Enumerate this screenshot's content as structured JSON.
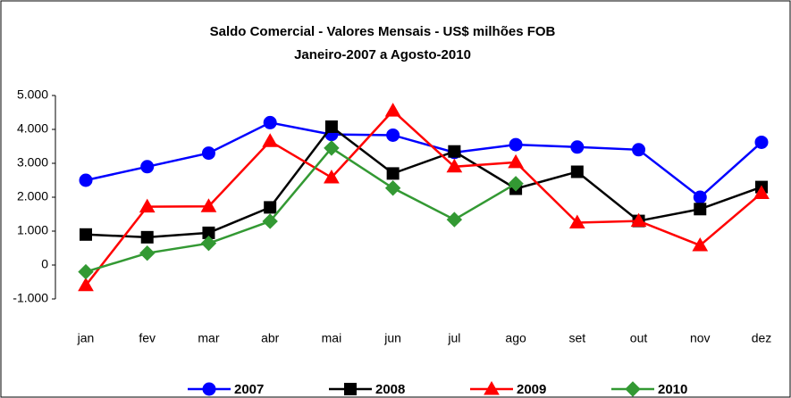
{
  "chart_data": {
    "type": "line",
    "title": "Saldo Comercial - Valores Mensais - US$ milhões FOB",
    "subtitle": "Janeiro-2007 a Agosto-2010",
    "categories": [
      "jan",
      "fev",
      "mar",
      "abr",
      "mai",
      "jun",
      "jul",
      "ago",
      "set",
      "out",
      "nov",
      "dez"
    ],
    "series": [
      {
        "name": "2007",
        "color": "#0000ff",
        "marker": "circle",
        "values": [
          2500,
          2900,
          3300,
          4200,
          3850,
          3830,
          3320,
          3550,
          3480,
          3400,
          2000,
          3620
        ]
      },
      {
        "name": "2008",
        "color": "#000000",
        "marker": "square",
        "values": [
          900,
          820,
          950,
          1700,
          4080,
          2700,
          3350,
          2250,
          2750,
          1300,
          1650,
          2300
        ]
      },
      {
        "name": "2009",
        "color": "#ff0000",
        "marker": "triangle",
        "values": [
          -600,
          1720,
          1730,
          3650,
          2580,
          4550,
          2900,
          3030,
          1250,
          1300,
          580,
          2120
        ]
      },
      {
        "name": "2010",
        "color": "#339933",
        "marker": "diamond",
        "values": [
          -200,
          350,
          640,
          1290,
          3450,
          2270,
          1340,
          2400,
          null,
          null,
          null,
          null
        ]
      }
    ],
    "ylim": [
      -1000,
      5000
    ],
    "yticks": [
      {
        "value": -1000,
        "label": "-1.000"
      },
      0,
      {
        "value": 1000,
        "label": "1.000"
      },
      {
        "value": 2000,
        "label": "2.000"
      },
      {
        "value": 3000,
        "label": "3.000"
      },
      {
        "value": 4000,
        "label": "4.000"
      },
      {
        "value": 5000,
        "label": "5.000"
      }
    ],
    "legend": "bottom"
  }
}
